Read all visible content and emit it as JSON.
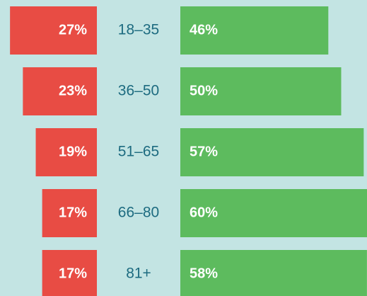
{
  "chart_data": {
    "type": "diverging_bar",
    "categories": [
      "18–35",
      "36–50",
      "51–65",
      "66–80",
      "81+"
    ],
    "series": [
      {
        "color": "#e84c44",
        "side": "left",
        "values": [
          27,
          23,
          19,
          17,
          17
        ],
        "value_labels": [
          "27%",
          "23%",
          "19%",
          "17%",
          "17%"
        ]
      },
      {
        "color": "#5dbb5e",
        "side": "right",
        "values": [
          46,
          50,
          57,
          60,
          58
        ],
        "value_labels": [
          "46%",
          "50%",
          "57%",
          "60%",
          "58%"
        ]
      }
    ]
  }
}
